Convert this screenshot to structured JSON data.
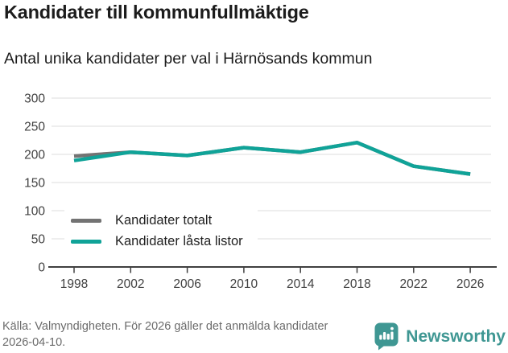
{
  "title": "Kandidater till kommunfullmäktige",
  "subtitle": "Antal unika kandidater per val i Härnösands kommun",
  "chart_data": {
    "type": "line",
    "categories": [
      "1998",
      "2002",
      "2006",
      "2010",
      "2014",
      "2018",
      "2022",
      "2026"
    ],
    "series": [
      {
        "name": "Kandidater totalt",
        "color": "#737373",
        "values": [
          197,
          204,
          198,
          212,
          204,
          221,
          179,
          165
        ]
      },
      {
        "name": "Kandidater låsta listor",
        "color": "#10a398",
        "values": [
          189,
          204,
          198,
          212,
          204,
          221,
          179,
          165
        ]
      }
    ],
    "title": "Kandidater till kommunfullmäktige",
    "xlabel": "",
    "ylabel": "",
    "ylim": [
      0,
      300
    ],
    "yticks": [
      0,
      50,
      100,
      150,
      200,
      250,
      300
    ],
    "grid": true,
    "legend_position": "lower-left"
  },
  "footer": {
    "source_text": "Källa: Valmyndigheten. För 2026 gäller det anmälda kandidater 2026-04-10.",
    "brand": "Newsworthy"
  },
  "colors": {
    "text": "#1c1c1c",
    "tick_text": "#404040",
    "grid": "#dcdcdc",
    "axis": "#404040",
    "muted_text": "#6b6b6b",
    "brand_teal": "#3f9793",
    "line_gray": "#737373",
    "line_teal": "#10a398"
  }
}
